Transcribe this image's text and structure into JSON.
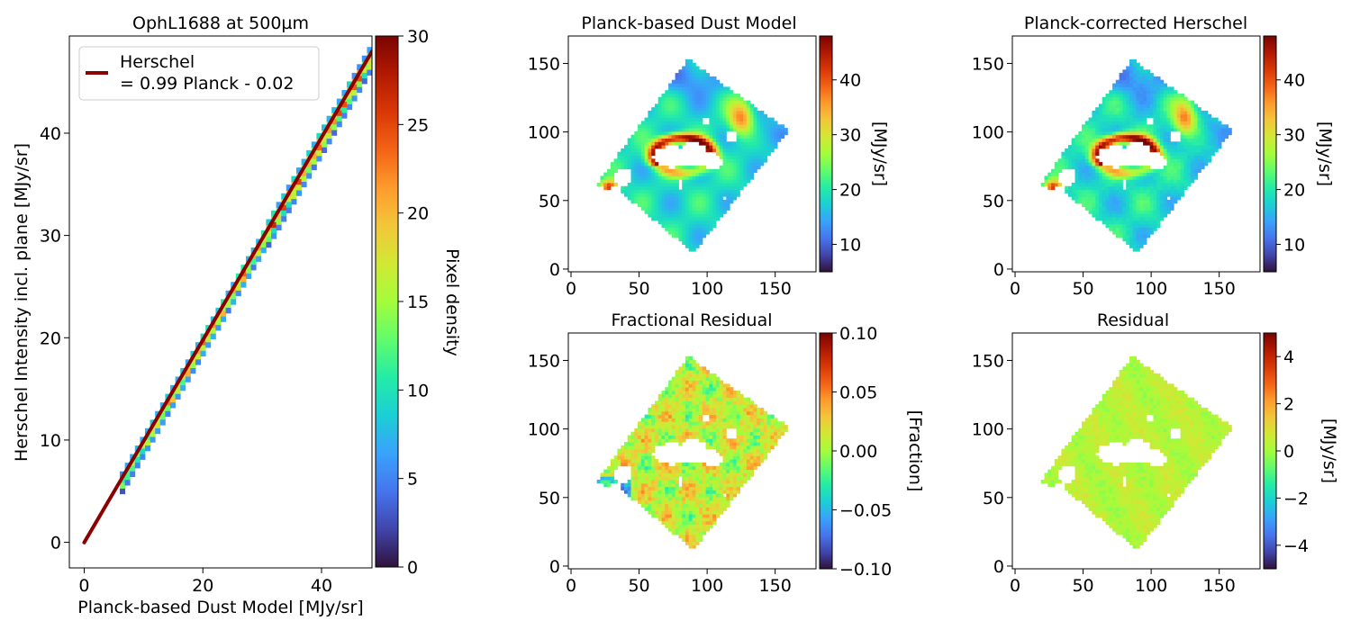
{
  "colormap": [
    "#30123b",
    "#4145ab",
    "#4675ed",
    "#39a2fc",
    "#1bcfd4",
    "#24eca6",
    "#61fc6c",
    "#a4fc3b",
    "#d1e834",
    "#f3c63a",
    "#fe9b2d",
    "#f36315",
    "#d93806",
    "#b11901",
    "#7a0402"
  ],
  "fit_color": "#8b0000",
  "chart_data": [
    {
      "type": "heatmap",
      "subtype": "2d-histogram-scatter",
      "title": "OphL1688 at 500µm",
      "xlabel": "Planck-based Dust Model [MJy/sr]",
      "ylabel": "Herschel Intensity incl. plane [MJy/sr]",
      "xlim": [
        -2.5,
        48.5
      ],
      "ylim": [
        -2.5,
        49.5
      ],
      "xticks": [
        0,
        20,
        40
      ],
      "yticks": [
        0,
        10,
        20,
        30,
        40
      ],
      "colorbar": {
        "label": "Pixel density",
        "range": [
          0,
          30
        ],
        "ticks": [
          0,
          5,
          10,
          15,
          20,
          25,
          30
        ]
      },
      "legend": {
        "location": "upper-left",
        "line1": "Herschel",
        "line2": "= 0.99 Planck - 0.02"
      },
      "fit": {
        "slope": 0.99,
        "intercept": -0.02,
        "x_range": [
          0,
          48.5
        ]
      },
      "density_band": {
        "x_range": [
          6,
          48.5
        ],
        "slope": 0.99,
        "intercept": -0.02
      }
    },
    {
      "type": "heatmap",
      "title": "Planck-based Dust Model",
      "xlim": [
        -2,
        180
      ],
      "ylim": [
        -2,
        170
      ],
      "xticks": [
        0,
        50,
        100,
        150
      ],
      "yticks": [
        0,
        50,
        100,
        150
      ],
      "colorbar": {
        "label": "[MJy/sr]",
        "range": [
          5,
          48
        ],
        "ticks": [
          10,
          20,
          30,
          40
        ]
      }
    },
    {
      "type": "heatmap",
      "title": "Planck-corrected Herschel",
      "xlim": [
        -2,
        180
      ],
      "ylim": [
        -2,
        170
      ],
      "xticks": [
        0,
        50,
        100,
        150
      ],
      "yticks": [
        0,
        50,
        100,
        150
      ],
      "colorbar": {
        "label": "[MJy/sr]",
        "range": [
          5,
          48
        ],
        "ticks": [
          10,
          20,
          30,
          40
        ]
      }
    },
    {
      "type": "heatmap",
      "title": "Fractional Residual",
      "xlim": [
        -2,
        180
      ],
      "ylim": [
        -2,
        170
      ],
      "xticks": [
        0,
        50,
        100,
        150
      ],
      "yticks": [
        0,
        50,
        100,
        150
      ],
      "colorbar": {
        "label": "[Fraction]",
        "range": [
          -0.1,
          0.1
        ],
        "ticks": [
          "−0.10",
          "−0.05",
          "0.00",
          "0.05",
          "0.10"
        ],
        "tick_values": [
          -0.1,
          -0.05,
          0,
          0.05,
          0.1
        ]
      }
    },
    {
      "type": "heatmap",
      "title": "Residual",
      "xlim": [
        -2,
        180
      ],
      "ylim": [
        -2,
        170
      ],
      "xticks": [
        0,
        50,
        100,
        150
      ],
      "yticks": [
        0,
        50,
        100,
        150
      ],
      "colorbar": {
        "label": "[MJy/sr]",
        "range": [
          -5,
          5
        ],
        "ticks": [
          "−4",
          "−2",
          "0",
          "2",
          "4"
        ],
        "tick_values": [
          -4,
          -2,
          0,
          2,
          4
        ]
      }
    }
  ]
}
